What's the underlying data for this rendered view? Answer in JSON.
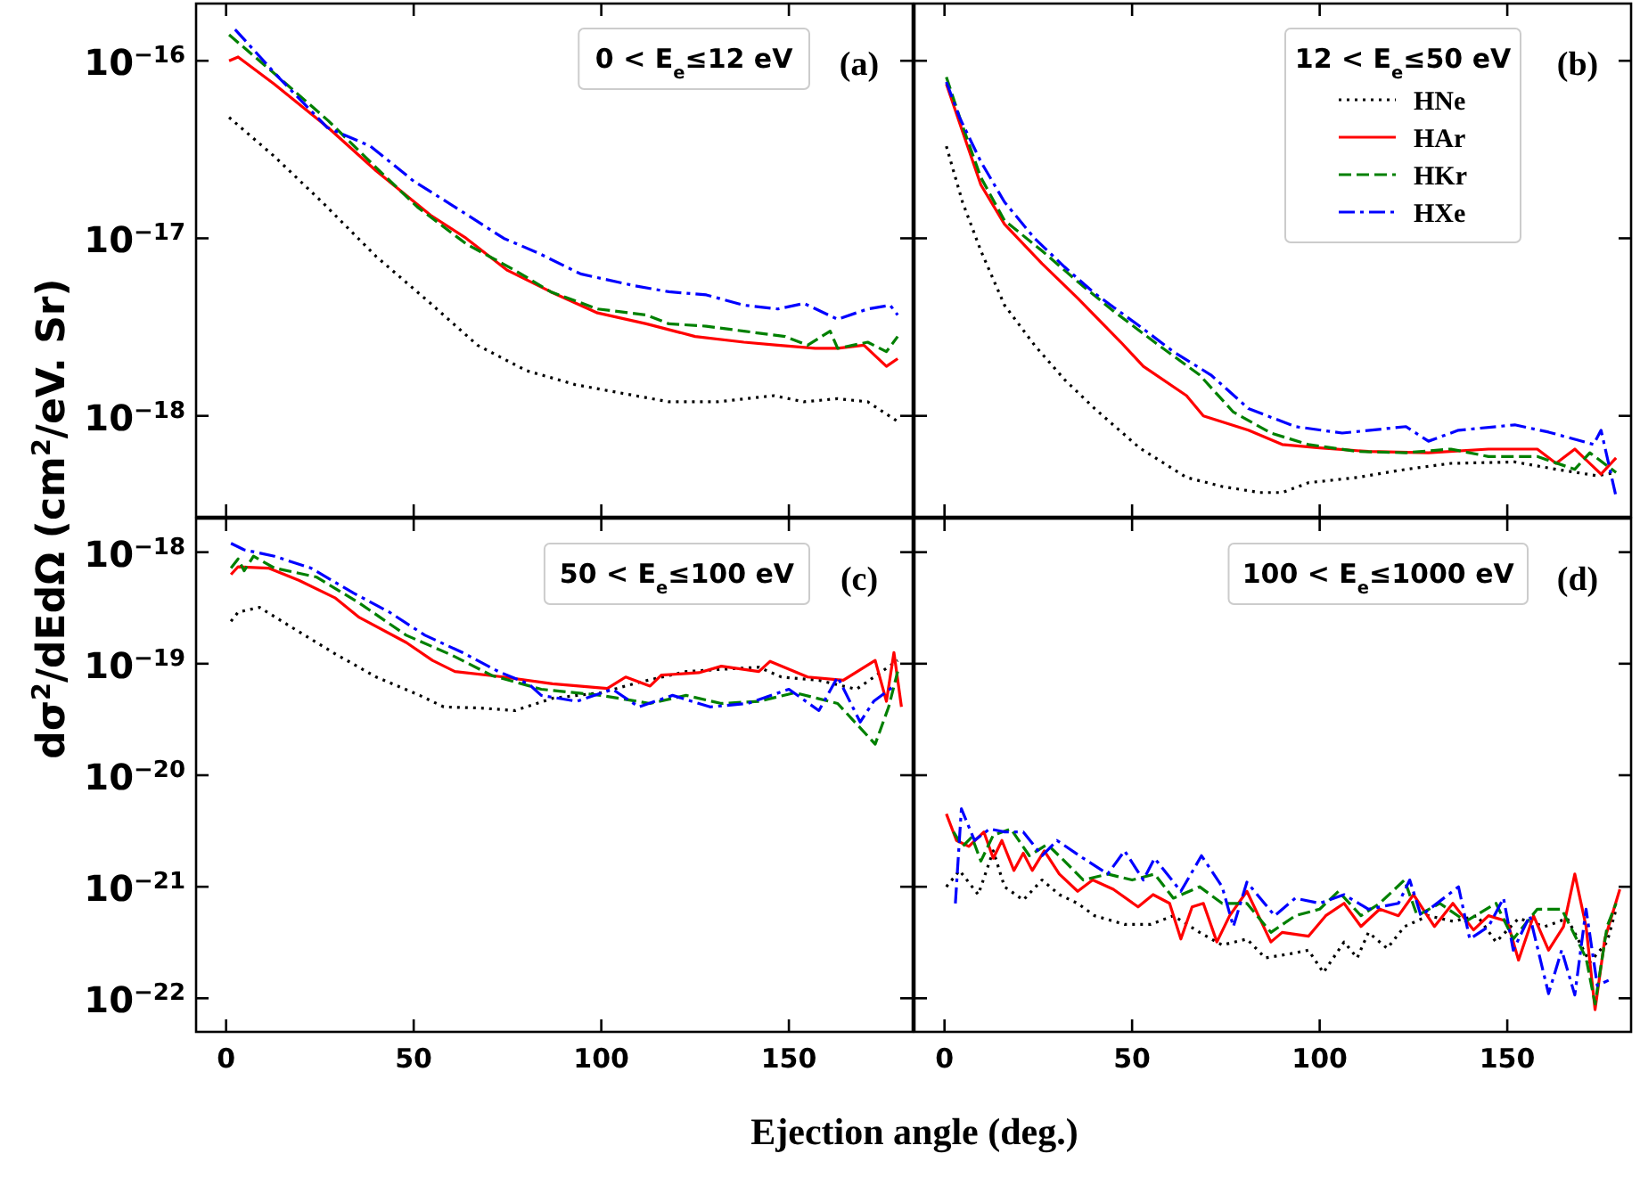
{
  "chart_data": [
    {
      "type": "line",
      "log": "y",
      "xlim": [
        -8,
        183
      ],
      "ylim": [
        2.7e-19,
        2.1e-16
      ],
      "xticks": [
        {
          "value": 0,
          "label": null
        },
        {
          "value": 50,
          "label": null
        },
        {
          "value": 100,
          "label": null
        },
        {
          "value": 150,
          "label": null
        }
      ],
      "yticks": [
        {
          "value": 1e-16,
          "label": "10$^{−16}$"
        },
        {
          "value": 1e-17,
          "label": "10$^{−17}$"
        },
        {
          "value": 1e-18,
          "label": "10$^{−18}$"
        }
      ],
      "tick_labels": "y",
      "ylabel": "dσ$^{2}$/dEdΩ (cm$^{2}$/eV. Sr)",
      "annotations": [
        "0 < E$_{e}$≤12 eV",
        "(a)"
      ],
      "series": [
        {
          "color": "#000000",
          "line_style": "dotted",
          "x": [
            0.8,
            12.8,
            25.6,
            40,
            54.5,
            67,
            80,
            93,
            109,
            118,
            131,
            146,
            154,
            163,
            171,
            179
          ],
          "values": [
            4.8e-17,
            2.9e-17,
            1.6e-17,
            7.9e-18,
            4.3e-18,
            2.5e-18,
            1.8e-18,
            1.5e-18,
            1.3e-18,
            1.2e-18,
            1.2e-18,
            1.3e-18,
            1.2e-18,
            1.25e-18,
            1.2e-18,
            9.3e-19
          ]
        },
        {
          "color": "#ff0000",
          "line_style": "solid",
          "x": [
            0.8,
            3.2,
            12.8,
            27.2,
            40,
            54.5,
            64,
            75,
            86.5,
            99,
            112,
            125,
            138,
            147,
            157,
            163,
            170,
            176,
            179
          ],
          "values": [
            1e-16,
            1.05e-16,
            7.4e-17,
            4.2e-17,
            2.4e-17,
            1.35e-17,
            1e-17,
            6.6e-18,
            5e-18,
            3.8e-18,
            3.3e-18,
            2.8e-18,
            2.6e-18,
            2.5e-18,
            2.4e-18,
            2.4e-18,
            2.5e-18,
            1.9e-18,
            2.1e-18
          ]
        },
        {
          "color": "#008000",
          "line_style": "dashed",
          "x": [
            0.8,
            12.8,
            27.2,
            40,
            51,
            64,
            77,
            86.5,
            99,
            112,
            118,
            128,
            138,
            149,
            155,
            161,
            163,
            171,
            176,
            179
          ],
          "values": [
            1.4e-16,
            8.5e-17,
            4.6e-17,
            2.5e-17,
            1.5e-17,
            9.3e-18,
            6.6e-18,
            5e-18,
            4e-18,
            3.7e-18,
            3.3e-18,
            3.2e-18,
            3e-18,
            2.8e-18,
            2.5e-18,
            3e-18,
            2.4e-18,
            2.6e-18,
            2.3e-18,
            2.8e-18
          ]
        },
        {
          "color": "#0000ff",
          "line_style": "dashdot",
          "x": [
            2.4,
            14.4,
            27,
            38.5,
            50,
            61,
            74,
            83,
            94.5,
            109,
            118,
            128,
            138,
            147,
            154,
            163,
            171,
            177,
            179
          ],
          "values": [
            1.5e-16,
            7.9e-17,
            4.2e-17,
            3.3e-17,
            2.1e-17,
            1.5e-17,
            1e-17,
            8.3e-18,
            6.3e-18,
            5.4e-18,
            5e-18,
            4.8e-18,
            4.2e-18,
            4e-18,
            4.3e-18,
            3.5e-18,
            4e-18,
            4.2e-18,
            3.7e-18
          ]
        }
      ]
    },
    {
      "type": "line",
      "log": "y",
      "xlim": [
        -8,
        183
      ],
      "ylim": [
        2.7e-19,
        2.1e-16
      ],
      "xticks": [
        {
          "value": 0,
          "label": null
        },
        {
          "value": 50,
          "label": null
        },
        {
          "value": 100,
          "label": null
        },
        {
          "value": 150,
          "label": null
        }
      ],
      "yticks": [
        {
          "value": 1e-16,
          "label": null
        },
        {
          "value": 1e-17,
          "label": null
        },
        {
          "value": 1e-18,
          "label": null
        }
      ],
      "tick_labels": false,
      "legend": "top right",
      "legend_title": "12 < E$_{e}$≤50 eV",
      "annotations": [
        "(b)"
      ],
      "series": [
        {
          "name": "HNe",
          "color": "#000000",
          "line_style": "dotted",
          "x": [
            0.5,
            4.8,
            9.7,
            16,
            24,
            32,
            40,
            52,
            64.5,
            74,
            84,
            90,
            97,
            110,
            123,
            135,
            152,
            163,
            174,
            179
          ],
          "values": [
            3.3e-17,
            1.6e-17,
            8.5e-18,
            4.2e-18,
            2.5e-18,
            1.6e-18,
            1.1e-18,
            6.6e-19,
            4.5e-19,
            4e-19,
            3.7e-19,
            3.7e-19,
            4.2e-19,
            4.5e-19,
            5e-19,
            5.4e-19,
            5.5e-19,
            5e-19,
            4.6e-19,
            4.8e-19
          ]
        },
        {
          "name": "HAr",
          "color": "#ff0000",
          "line_style": "solid",
          "x": [
            0.5,
            4.8,
            9.7,
            16,
            26,
            35.5,
            47,
            53,
            64.5,
            69,
            81,
            90,
            100,
            113,
            129,
            145,
            158,
            163,
            168,
            175,
            179
          ],
          "values": [
            7.4e-17,
            4e-17,
            2e-17,
            1.2e-17,
            7.2e-18,
            4.6e-18,
            2.6e-18,
            1.9e-18,
            1.3e-18,
            1e-18,
            8.3e-19,
            6.9e-19,
            6.6e-19,
            6.3e-19,
            6.2e-19,
            6.5e-19,
            6.5e-19,
            5.4e-19,
            6.5e-19,
            4.7e-19,
            5.8e-19
          ]
        },
        {
          "name": "HKr",
          "color": "#008000",
          "line_style": "dashed",
          "x": [
            0.5,
            4.8,
            9.7,
            16,
            26,
            35.5,
            45,
            56,
            68,
            77,
            87,
            97,
            110,
            123,
            135,
            145,
            158,
            168,
            172,
            179
          ],
          "values": [
            8.1e-17,
            4.3e-17,
            2.2e-17,
            1.26e-17,
            8.5e-18,
            5.7e-18,
            3.9e-18,
            2.6e-18,
            1.7e-18,
            1.05e-18,
            8e-19,
            6.9e-19,
            6.3e-19,
            6.2e-19,
            6.5e-19,
            5.9e-19,
            5.9e-19,
            5e-19,
            6.2e-19,
            4.8e-19
          ]
        },
        {
          "name": "HXe",
          "color": "#0000ff",
          "line_style": "dashdot",
          "x": [
            0.5,
            4,
            9.7,
            16,
            24,
            32,
            40,
            52,
            61,
            71,
            81,
            93.5,
            106,
            123,
            129,
            137,
            152,
            161,
            173,
            175,
            179
          ],
          "values": [
            7.6e-17,
            4.8e-17,
            2.7e-17,
            1.6e-17,
            1e-17,
            6.9e-18,
            4.9e-18,
            3.2e-18,
            2.3e-18,
            1.7e-18,
            1.1e-18,
            8.7e-19,
            8e-19,
            8.7e-19,
            7.2e-19,
            8.3e-19,
            8.9e-19,
            8.1e-19,
            6.9e-19,
            8.3e-19,
            3.5e-19
          ]
        }
      ]
    },
    {
      "type": "line",
      "log": "y",
      "xlim": [
        -8,
        183
      ],
      "ylim": [
        5e-23,
        2e-18
      ],
      "xticks": [
        0,
        50,
        100,
        150
      ],
      "yticks": [
        {
          "value": 1e-18,
          "label": "10$^{−18}$"
        },
        {
          "value": 1e-19,
          "label": "10$^{−19}$"
        },
        {
          "value": 1e-20,
          "label": "10$^{−20}$"
        },
        {
          "value": 1e-21,
          "label": "10$^{−21}$"
        },
        {
          "value": 1e-22,
          "label": "10$^{−22}$"
        }
      ],
      "xlabel": "Ejection angle (deg.)",
      "annotations": [
        "50 < E$_{e}$≤100 eV",
        "(c)"
      ],
      "series": [
        {
          "color": "#000000",
          "line_style": "dotted",
          "x": [
            1.3,
            3.2,
            8.9,
            17.7,
            29,
            40,
            51.6,
            58,
            68,
            77,
            87,
            100,
            110,
            122.6,
            132,
            142,
            148,
            158,
            168,
            179
          ],
          "values": [
            2.4e-19,
            2.9e-19,
            3.2e-19,
            2.1e-19,
            1.23e-19,
            7.6e-20,
            5.2e-20,
            4.1e-20,
            4e-20,
            3.8e-20,
            4.9e-20,
            5.5e-20,
            6.8e-20,
            8.5e-20,
            8.9e-20,
            9.3e-20,
            7.6e-20,
            7.1e-20,
            5.9e-20,
            1.07e-19
          ]
        },
        {
          "color": "#ff0000",
          "line_style": "solid",
          "x": [
            1.3,
            3.2,
            11.3,
            19.4,
            29,
            35.5,
            48,
            55,
            61,
            74,
            87,
            101.6,
            106.5,
            113,
            116,
            126,
            132,
            142,
            145,
            155,
            164.5,
            173,
            176,
            178,
            180
          ],
          "values": [
            6.3e-19,
            7.4e-19,
            7.2e-19,
            5.6e-19,
            3.9e-19,
            2.6e-19,
            1.55e-19,
            1.07e-19,
            8.5e-20,
            7.6e-20,
            6.6e-20,
            6e-20,
            7.6e-20,
            6.3e-20,
            7.9e-20,
            8.3e-20,
            9.5e-20,
            8.5e-20,
            1.05e-19,
            7.6e-20,
            7.1e-20,
            1.07e-19,
            4.6e-20,
            1.26e-19,
            4.1e-20
          ]
        },
        {
          "color": "#008000",
          "line_style": "dashed",
          "x": [
            1.3,
            3.2,
            4.8,
            7.3,
            12.9,
            24,
            35.5,
            48,
            60,
            71,
            84,
            100,
            113,
            122.6,
            132,
            142,
            151.6,
            163,
            173,
            176.6,
            179
          ],
          "values": [
            7.2e-19,
            8.7e-19,
            6.8e-19,
            9.2e-19,
            7.2e-19,
            6e-19,
            3.5e-19,
            1.8e-19,
            1.2e-19,
            7.8e-20,
            5.9e-20,
            5.2e-20,
            4.4e-20,
            5.2e-20,
            4.4e-20,
            4.6e-20,
            5.5e-20,
            4.4e-20,
            1.9e-20,
            4.1e-20,
            8.5e-20
          ]
        },
        {
          "color": "#0000ff",
          "line_style": "dashdot",
          "x": [
            1.3,
            4.8,
            12.9,
            22.6,
            34,
            43.5,
            53,
            63,
            72.6,
            80.6,
            84,
            93.5,
            103,
            110,
            119,
            129,
            139,
            150,
            158,
            163,
            169,
            172.6,
            178
          ],
          "values": [
            1.2e-18,
            1.05e-18,
            9.2e-19,
            7.2e-19,
            4.3e-19,
            2.9e-19,
            1.8e-19,
            1.26e-19,
            8.5e-20,
            6.6e-20,
            5.2e-20,
            4.6e-20,
            5.9e-20,
            4.1e-20,
            5.2e-20,
            4.1e-20,
            4.4e-20,
            5.9e-20,
            3.8e-20,
            7.6e-20,
            3e-20,
            4.6e-20,
            6.3e-20
          ]
        }
      ]
    },
    {
      "type": "line",
      "log": "y",
      "xlim": [
        -8,
        183
      ],
      "ylim": [
        5e-23,
        2e-18
      ],
      "xticks": [
        0,
        50,
        100,
        150
      ],
      "yticks": [
        {
          "value": 1e-18,
          "label": null
        },
        {
          "value": 1e-19,
          "label": null
        },
        {
          "value": 1e-20,
          "label": null
        },
        {
          "value": 1e-21,
          "label": null
        },
        {
          "value": 1e-22,
          "label": null
        }
      ],
      "tick_labels": "x",
      "annotations": [
        "100 < E$_{e}$≤1000 eV",
        "(d)"
      ],
      "series": [
        {
          "color": "#000000",
          "line_style": "dotted",
          "x": [
            0.5,
            4,
            9,
            13,
            16,
            21,
            26,
            30.6,
            35.5,
            40,
            48,
            55,
            61,
            68,
            74,
            80.6,
            85.5,
            92,
            97,
            101,
            106.5,
            110,
            113,
            118,
            122.6,
            129,
            135.5,
            142,
            147,
            153,
            160,
            166,
            172,
            176.6,
            179
          ],
          "values": [
            1e-21,
            1.4e-21,
            8.5e-22,
            2.1e-21,
            1e-21,
            7.6e-22,
            1.15e-21,
            8.5e-22,
            7.1e-22,
            5.5e-22,
            4.6e-22,
            4.6e-22,
            5.5e-22,
            3.9e-22,
            3e-22,
            3.4e-22,
            2.3e-22,
            2.5e-22,
            2.7e-22,
            1.7e-22,
            3.2e-22,
            2.3e-22,
            3.9e-22,
            2.8e-22,
            4.4e-22,
            5.5e-22,
            4.9e-22,
            5.5e-22,
            3.2e-22,
            5.2e-22,
            4.4e-22,
            5.2e-22,
            2.1e-22,
            3.2e-22,
            6.3e-22
          ]
        },
        {
          "color": "#ff0000",
          "line_style": "solid",
          "x": [
            0.5,
            3.2,
            6.5,
            10.5,
            13,
            15.3,
            18.5,
            21,
            23.4,
            26.6,
            30.6,
            35.5,
            39.5,
            45,
            51.6,
            55.6,
            60,
            63,
            66,
            69,
            72.6,
            76,
            80.6,
            87,
            90,
            97,
            101.6,
            106.5,
            111,
            116,
            121,
            125,
            130.6,
            135.5,
            141,
            145,
            150,
            153,
            157,
            161,
            165,
            168,
            171,
            173.4,
            176,
            180
          ],
          "values": [
            4.5e-21,
            2.6e-21,
            2.3e-21,
            3.1e-21,
            1.8e-21,
            2.6e-21,
            1.4e-21,
            2e-21,
            1.4e-21,
            2.1e-21,
            1.3e-21,
            9.1e-22,
            1.15e-21,
            9.5e-22,
            6.6e-22,
            8.5e-22,
            7.1e-22,
            3.4e-22,
            6.6e-22,
            7.1e-22,
            3.2e-22,
            5.5e-22,
            9.1e-22,
            3.2e-22,
            3.9e-22,
            3.6e-22,
            5.5e-22,
            7.1e-22,
            4.4e-22,
            6.3e-22,
            5.5e-22,
            8.5e-22,
            4.4e-22,
            7.1e-22,
            4.1e-22,
            5.5e-22,
            4.9e-22,
            2.2e-22,
            5.5e-22,
            2.7e-22,
            4.4e-22,
            1.3e-21,
            4.4e-22,
            7.9e-23,
            3.4e-22,
            9.5e-22
          ]
        },
        {
          "color": "#008000",
          "line_style": "dashed",
          "x": [
            2.4,
            4.8,
            7.3,
            9.7,
            13,
            17.7,
            22.6,
            27.4,
            32,
            37,
            43.5,
            50,
            56,
            61,
            68,
            74,
            80.6,
            87,
            93.5,
            100,
            105,
            111,
            116,
            122.6,
            126,
            132,
            139,
            147,
            151.6,
            158,
            164.5,
            171,
            173.4,
            176.6,
            179
          ],
          "values": [
            3.1e-21,
            2.3e-21,
            2.8e-21,
            1.7e-21,
            2.9e-21,
            3.3e-21,
            1.9e-21,
            2.4e-21,
            1.7e-21,
            1.15e-21,
            1.3e-21,
            1.15e-21,
            1.3e-21,
            7.9e-22,
            1e-21,
            7.1e-22,
            7.1e-22,
            3.9e-22,
            5.5e-22,
            6.3e-22,
            9.1e-22,
            5.5e-22,
            7.1e-22,
            1.15e-21,
            5.5e-22,
            7.1e-22,
            4.9e-22,
            7.1e-22,
            3.4e-22,
            6.3e-22,
            6.3e-22,
            2.3e-22,
            8.9e-23,
            4.4e-22,
            7.1e-22
          ]
        },
        {
          "color": "#0000ff",
          "line_style": "dashdot",
          "x": [
            2.9,
            4.5,
            8,
            12,
            16,
            21,
            26,
            30,
            37,
            43.5,
            48,
            53,
            56,
            63,
            68.5,
            74,
            77,
            80.6,
            88,
            93.5,
            100,
            106.5,
            113,
            121,
            124,
            127,
            137,
            140,
            145,
            149,
            151.6,
            156,
            161,
            164.5,
            168,
            171,
            174,
            177
          ],
          "values": [
            7.1e-22,
            5e-21,
            2.6e-21,
            3.3e-21,
            3.1e-21,
            3.1e-21,
            1.9e-21,
            2.6e-21,
            1.8e-21,
            1.3e-21,
            2.1e-21,
            1.15e-21,
            1.8e-21,
            9.1e-22,
            1.9e-21,
            1e-21,
            4.4e-22,
            1.1e-21,
            5.5e-22,
            7.9e-22,
            7.1e-22,
            8.5e-22,
            6.3e-22,
            7.1e-22,
            1.15e-21,
            5.5e-22,
            1e-21,
            3.4e-22,
            4.4e-22,
            7.9e-22,
            2.7e-22,
            5.5e-22,
            1.1e-22,
            2.7e-22,
            1.07e-22,
            6.3e-22,
            1.3e-22,
            1.45e-22
          ]
        }
      ]
    }
  ]
}
